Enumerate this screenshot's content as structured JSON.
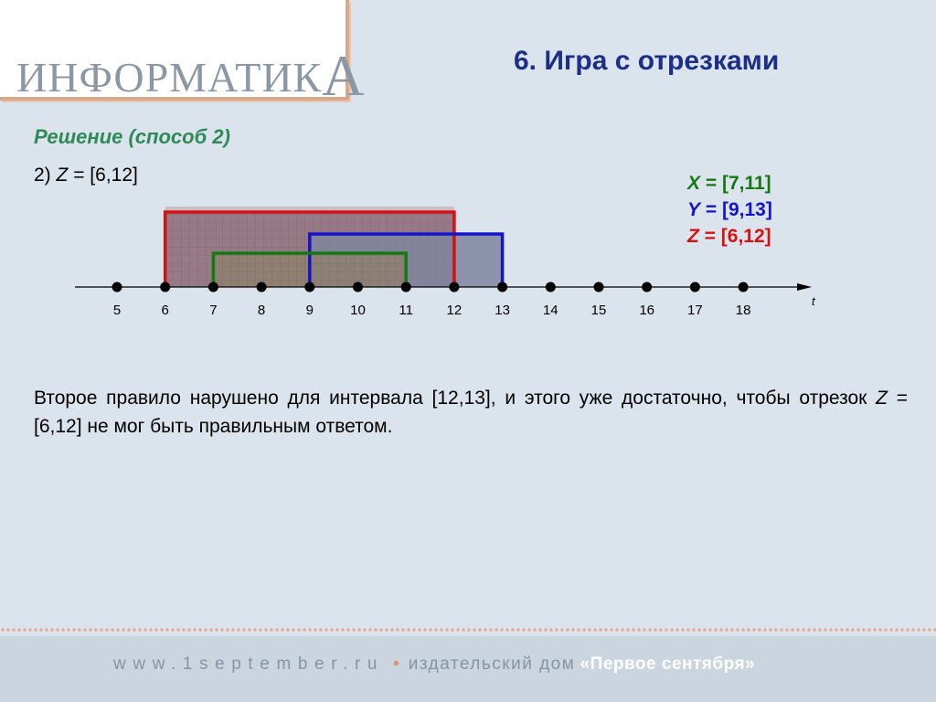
{
  "header": {
    "logo": "ИНФОРМАТИКА",
    "logo_main": "ИНФОРМАТИК",
    "logo_last": "А",
    "title": "6. Игра с отрезками"
  },
  "content": {
    "subtitle": "Решение (способ 2)",
    "case_prefix": "2)",
    "case_var": "Z",
    "case_value": "= [6,12]",
    "explanation_part1": "Второе правило нарушено для интервала [12,13], и этого уже достаточно, чтобы отрезок",
    "explanation_var": "Z",
    "explanation_part2": "= [6,12] не мог быть правильным ответом."
  },
  "legend": {
    "x": {
      "name": "X",
      "text": "= [7,11]",
      "color": "#137a13"
    },
    "y": {
      "name": "Y",
      "text": "= [9,13]",
      "color": "#1414c8"
    },
    "z": {
      "name": "Z",
      "text": "= [6,12]",
      "color": "#d41212"
    }
  },
  "diagram": {
    "axis_label": "t",
    "ticks": [
      5,
      6,
      7,
      8,
      9,
      10,
      11,
      12,
      13,
      14,
      15,
      16,
      17,
      18
    ],
    "segments": [
      {
        "name": "Z",
        "start": 6,
        "end": 12,
        "color": "#d41212",
        "fill": "#8e6e7a",
        "hatched": true
      },
      {
        "name": "Y",
        "start": 9,
        "end": 13,
        "color": "#1414c8",
        "fill": "#7f859f",
        "hatched": false
      },
      {
        "name": "X",
        "start": 7,
        "end": 11,
        "color": "#137a13",
        "fill": "#8f806e",
        "hatched": true
      }
    ]
  },
  "footer": {
    "url": "www.1september.ru",
    "separator": "•",
    "publisher": "издательский дом",
    "brand": "«Первое сентября»"
  }
}
